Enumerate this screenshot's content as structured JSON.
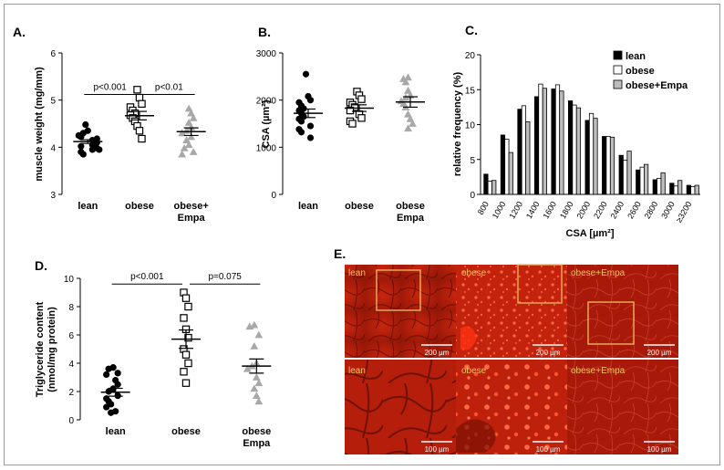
{
  "panels": {
    "A": {
      "label": "A."
    },
    "B": {
      "label": "B."
    },
    "C": {
      "label": "C."
    },
    "D": {
      "label": "D."
    },
    "E": {
      "label": "E."
    }
  },
  "chart_data": [
    {
      "id": "A",
      "type": "scatter",
      "ylabel": "muscle weight (mg/mm)",
      "ylim": [
        3,
        6
      ],
      "yticks": [
        "3",
        "4",
        "5",
        "6"
      ],
      "categories": [
        "lean",
        "obese",
        "obese+ Empa"
      ],
      "category_lines": [
        [
          "lean"
        ],
        [
          "obese"
        ],
        [
          "obese+",
          "Empa"
        ]
      ],
      "markers": [
        "filled-circle",
        "open-square",
        "grey-triangle"
      ],
      "series": [
        {
          "values": [
            4.48,
            4.35,
            4.3,
            4.25,
            4.22,
            4.18,
            4.15,
            4.12,
            4.1,
            4.05,
            4.02,
            3.98,
            3.95,
            3.9,
            3.85,
            3.95
          ]
        },
        {
          "values": [
            5.22,
            5.05,
            4.92,
            4.85,
            4.78,
            4.72,
            4.68,
            4.62,
            4.55,
            4.45,
            4.35,
            4.18
          ]
        },
        {
          "values": [
            4.82,
            4.72,
            4.62,
            4.52,
            4.42,
            4.35,
            4.3,
            4.22,
            4.15,
            4.05,
            3.98,
            3.9,
            3.85
          ]
        }
      ],
      "means": [
        4.12,
        4.67,
        4.33
      ],
      "sems": [
        0.04,
        0.09,
        0.08
      ],
      "annotations": [
        {
          "text": "p<0.001",
          "from": 0,
          "to": 1,
          "y": 5.12
        },
        {
          "text": "p<0.01",
          "from": 1,
          "to": 2,
          "y": 5.12
        }
      ]
    },
    {
      "id": "B",
      "type": "scatter",
      "ylabel": "CSA (µm²)",
      "ylim": [
        0,
        3000
      ],
      "yticks": [
        "0",
        "1000",
        "2000",
        "3000"
      ],
      "categories": [
        "lean",
        "obese",
        "obese Empa"
      ],
      "category_lines": [
        [
          "lean"
        ],
        [
          "obese"
        ],
        [
          "obese",
          "Empa"
        ]
      ],
      "markers": [
        "filled-circle",
        "open-square",
        "grey-triangle"
      ],
      "series": [
        {
          "values": [
            2550,
            2080,
            2000,
            1950,
            1880,
            1820,
            1780,
            1720,
            1650,
            1600,
            1550,
            1450,
            1380,
            1320,
            1200
          ]
        },
        {
          "values": [
            2180,
            2100,
            2020,
            1950,
            1900,
            1850,
            1780,
            1700,
            1620,
            1550,
            1500
          ]
        },
        {
          "values": [
            2480,
            2450,
            2380,
            2200,
            2100,
            2050,
            1980,
            1920,
            1850,
            1700,
            1600,
            1500,
            1400
          ]
        }
      ],
      "means": [
        1720,
        1830,
        1960
      ],
      "sems": [
        90,
        70,
        110
      ]
    },
    {
      "id": "C",
      "type": "bar",
      "title": "",
      "xlabel": "CSA [µm²]",
      "ylabel": "relative frequency (%)",
      "ylim": [
        0,
        20
      ],
      "yticks": [
        "0",
        "5",
        "10",
        "15",
        "20"
      ],
      "categories": [
        "800",
        "1000",
        "1200",
        "1400",
        "1600",
        "1800",
        "2000",
        "2200",
        "2400",
        "2600",
        "2800",
        "3000",
        "≥3200"
      ],
      "legend_position": "top-right",
      "series": [
        {
          "name": "lean",
          "color": "#000000",
          "values": [
            2.9,
            8.5,
            12.2,
            14.0,
            15.1,
            13.4,
            10.6,
            8.3,
            5.6,
            3.5,
            2.1,
            1.6,
            1.3
          ]
        },
        {
          "name": "obese",
          "color": "#ffffff",
          "values": [
            1.9,
            7.9,
            12.7,
            15.8,
            15.7,
            12.8,
            11.6,
            8.3,
            4.9,
            3.9,
            2.3,
            1.2,
            1.1
          ]
        },
        {
          "name": "obese+Empa",
          "color": "#bdbdbd",
          "values": [
            2.0,
            6.0,
            10.4,
            15.2,
            14.8,
            12.4,
            10.9,
            8.2,
            6.2,
            4.3,
            3.1,
            2.0,
            1.3
          ]
        }
      ]
    },
    {
      "id": "D",
      "type": "scatter",
      "ylabel": "Triglyceride content (nmol/mg protein)",
      "ylabel_lines": [
        "Triglyceride content",
        "(nmol/mg protein)"
      ],
      "ylim": [
        0,
        10
      ],
      "yticks": [
        "0",
        "2",
        "4",
        "6",
        "8",
        "10"
      ],
      "categories": [
        "lean",
        "obese",
        "obese Empa"
      ],
      "category_lines": [
        [
          "lean"
        ],
        [
          "obese"
        ],
        [
          "obese",
          "Empa"
        ]
      ],
      "markers": [
        "filled-circle",
        "open-square",
        "grey-triangle"
      ],
      "series": [
        {
          "values": [
            3.7,
            3.6,
            3.3,
            3.2,
            2.8,
            2.5,
            2.2,
            2.0,
            1.7,
            1.5,
            1.3,
            1.1,
            0.9,
            0.6,
            0.5
          ]
        },
        {
          "values": [
            9.0,
            8.6,
            8.0,
            7.2,
            6.4,
            5.8,
            5.0,
            4.6,
            4.0,
            3.4,
            2.6
          ]
        },
        {
          "values": [
            6.7,
            6.6,
            6.0,
            5.2,
            4.0,
            3.8,
            3.6,
            3.0,
            2.6,
            2.2,
            1.7,
            1.3
          ]
        }
      ],
      "means": [
        1.95,
        5.7,
        3.8
      ],
      "sems": [
        0.28,
        0.65,
        0.5
      ],
      "annotations": [
        {
          "text": "p<0.001",
          "from": 0,
          "to": 1,
          "y": 9.6
        },
        {
          "text": "p=0.075",
          "from": 1,
          "to": 2,
          "y": 9.6
        }
      ]
    }
  ],
  "micrographs": {
    "row1": [
      {
        "label": "lean",
        "scale": "200 µm"
      },
      {
        "label": "obese",
        "scale": "200 µm"
      },
      {
        "label": "obese+Empa",
        "scale": "200 µm"
      }
    ],
    "row2": [
      {
        "label": "lean",
        "scale": "100 µm"
      },
      {
        "label": "obese",
        "scale": "100 µm"
      },
      {
        "label": "obese+Empa",
        "scale": "100 µm"
      }
    ]
  }
}
